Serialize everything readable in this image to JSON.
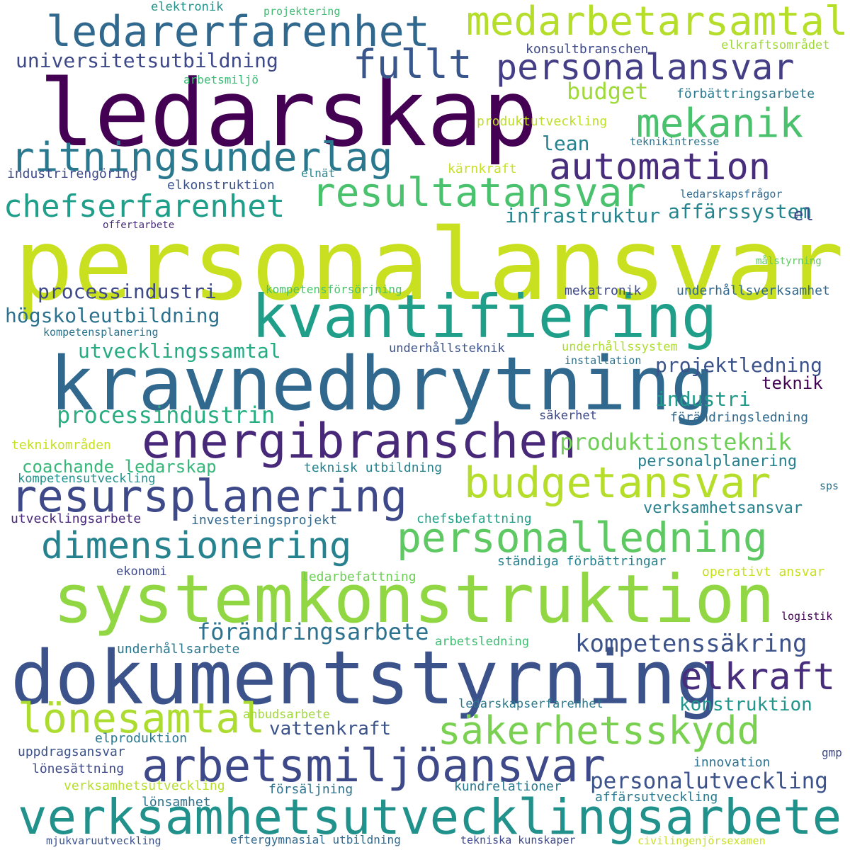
{
  "words": [
    {
      "text": "personalansvar",
      "color": "#c8e020"
    },
    {
      "text": "ledarskap",
      "color": "#440154"
    },
    {
      "text": "kravnedbrytning",
      "color": "#31688e"
    },
    {
      "text": "kvantifiering",
      "color": "#1f9e89"
    },
    {
      "text": "systemkonstruktion",
      "color": "#90d743"
    },
    {
      "text": "dokumentstyrning",
      "color": "#3b528b"
    },
    {
      "text": "verksamhetsutvecklingsarbete",
      "color": "#21918c"
    },
    {
      "text": "arbetsmiljöansvar",
      "color": "#3e4989"
    },
    {
      "text": "energibranschen",
      "color": "#482878"
    },
    {
      "text": "ledarerfarenhet",
      "color": "#31688e"
    },
    {
      "text": "ritningsunderlag",
      "color": "#2a788e"
    },
    {
      "text": "resultatansvar",
      "color": "#4ac16d"
    },
    {
      "text": "resursplanering",
      "color": "#3e4989"
    },
    {
      "text": "budgetansvar",
      "color": "#b5de2b"
    },
    {
      "text": "personalledning",
      "color": "#5ec962"
    },
    {
      "text": "dimensionering",
      "color": "#26828e"
    },
    {
      "text": "medarbetarsamtal",
      "color": "#b5de2b"
    },
    {
      "text": "fullt",
      "color": "#39568c"
    },
    {
      "text": "personalansvar",
      "color": "#433e85"
    },
    {
      "text": "mekanik",
      "color": "#4ac16d"
    },
    {
      "text": "automation",
      "color": "#472d7b"
    },
    {
      "text": "chefserfarenhet",
      "color": "#1f9e89"
    },
    {
      "text": "elkraft",
      "color": "#472d7b"
    },
    {
      "text": "lönesamtal",
      "color": "#addc30"
    },
    {
      "text": "säkerhetsskydd",
      "color": "#7ad151"
    },
    {
      "text": "kompetenssäkring",
      "color": "#3b528b"
    },
    {
      "text": "förändringsarbete",
      "color": "#2c728e"
    },
    {
      "text": "produktionsteknik",
      "color": "#6ece58"
    },
    {
      "text": "personalutveckling",
      "color": "#3b528b"
    },
    {
      "text": "universitetsutbildning",
      "color": "#3e4989"
    },
    {
      "text": "budget",
      "color": "#a0da39"
    },
    {
      "text": "processindustri",
      "color": "#3e4989"
    },
    {
      "text": "högskoleutbildning",
      "color": "#2c728e"
    },
    {
      "text": "utvecklingssamtal",
      "color": "#25ab82"
    },
    {
      "text": "processindustrin",
      "color": "#28ae80"
    },
    {
      "text": "projektledning",
      "color": "#3b528b"
    },
    {
      "text": "affärssystem",
      "color": "#25848e"
    },
    {
      "text": "infrastruktur",
      "color": "#25848e"
    },
    {
      "text": "industri",
      "color": "#1f9a8a"
    },
    {
      "text": "vattenkraft",
      "color": "#3b528b"
    },
    {
      "text": "konstruktion",
      "color": "#1f958b"
    },
    {
      "text": "coachande ledarskap",
      "color": "#35b779"
    },
    {
      "text": "lean",
      "color": "#26828e"
    },
    {
      "text": "teknik",
      "color": "#440154"
    },
    {
      "text": "el",
      "color": "#3e4989"
    },
    {
      "text": "verksamhetsansvar",
      "color": "#26828e"
    },
    {
      "text": "personalplanering",
      "color": "#26828e"
    },
    {
      "text": "elektronik",
      "color": "#21918c"
    },
    {
      "text": "projektering",
      "color": "#40bd72"
    },
    {
      "text": "konsultbranschen",
      "color": "#3e4989"
    },
    {
      "text": "elkraftsområdet",
      "color": "#a0da39"
    },
    {
      "text": "arbetsmiljö",
      "color": "#3bbb75"
    },
    {
      "text": "förbättringsarbete",
      "color": "#2a788e"
    },
    {
      "text": "produktutveckling",
      "color": "#bddf26"
    },
    {
      "text": "teknikintresse",
      "color": "#2c728e"
    },
    {
      "text": "industrirengöring",
      "color": "#3e4989"
    },
    {
      "text": "elnät",
      "color": "#26828e"
    },
    {
      "text": "kärnkraft",
      "color": "#c8e020"
    },
    {
      "text": "elkonstruktion",
      "color": "#3b528b"
    },
    {
      "text": "ledarskapsfrågor",
      "color": "#31688e"
    },
    {
      "text": "offertarbete",
      "color": "#472d7b"
    },
    {
      "text": "målstyrning",
      "color": "#5ec962"
    },
    {
      "text": "kompetensförsörjning",
      "color": "#4ac16d"
    },
    {
      "text": "mekatronik",
      "color": "#3e4989"
    },
    {
      "text": "underhållsverksamhet",
      "color": "#31688e"
    },
    {
      "text": "kompetensplanering",
      "color": "#2c728e"
    },
    {
      "text": "underhållsteknik",
      "color": "#3b528b"
    },
    {
      "text": "underhållssystem",
      "color": "#addc30"
    },
    {
      "text": "installation",
      "color": "#2c728e"
    },
    {
      "text": "säkerhet",
      "color": "#3e4989"
    },
    {
      "text": "förändringsledning",
      "color": "#31688e"
    },
    {
      "text": "teknikområden",
      "color": "#c8e020"
    },
    {
      "text": "teknisk utbildning",
      "color": "#26828e"
    },
    {
      "text": "kompetensutveckling",
      "color": "#21918c"
    },
    {
      "text": "sps",
      "color": "#2c728e"
    },
    {
      "text": "utvecklingsarbete",
      "color": "#482878"
    },
    {
      "text": "investeringsprojekt",
      "color": "#31688e"
    },
    {
      "text": "chefsbefattning",
      "color": "#1fa187"
    },
    {
      "text": "ekonomi",
      "color": "#3e4989"
    },
    {
      "text": "ständiga förbättringar",
      "color": "#26828e"
    },
    {
      "text": "ledarbefattning",
      "color": "#6ece58"
    },
    {
      "text": "operativt ansvar",
      "color": "#c8e020"
    },
    {
      "text": "logistik",
      "color": "#440154"
    },
    {
      "text": "underhållsarbete",
      "color": "#2a788e"
    },
    {
      "text": "arbetsledning",
      "color": "#40bd72"
    },
    {
      "text": "anbudsarbete",
      "color": "#a0da39"
    },
    {
      "text": "ledarskapserfarenhet",
      "color": "#2a788e"
    },
    {
      "text": "elproduktion",
      "color": "#2a788e"
    },
    {
      "text": "uppdragsansvar",
      "color": "#3b528b"
    },
    {
      "text": "lönesättning",
      "color": "#3e4989"
    },
    {
      "text": "gmp",
      "color": "#3e4989"
    },
    {
      "text": "innovation",
      "color": "#2c728e"
    },
    {
      "text": "verksamhetsutveckling",
      "color": "#b5de2b"
    },
    {
      "text": "försäljning",
      "color": "#2c728e"
    },
    {
      "text": "kundrelationer",
      "color": "#2a788e"
    },
    {
      "text": "affärsutveckling",
      "color": "#2a788e"
    },
    {
      "text": "lönsamhet",
      "color": "#2c728e"
    },
    {
      "text": "mjukvaruutveckling",
      "color": "#3b528b"
    },
    {
      "text": "eftergymnasial utbildning",
      "color": "#31688e"
    },
    {
      "text": "tekniska kunskaper",
      "color": "#3e4989"
    },
    {
      "text": "civilingenjörsexamen",
      "color": "#c8e020"
    }
  ]
}
